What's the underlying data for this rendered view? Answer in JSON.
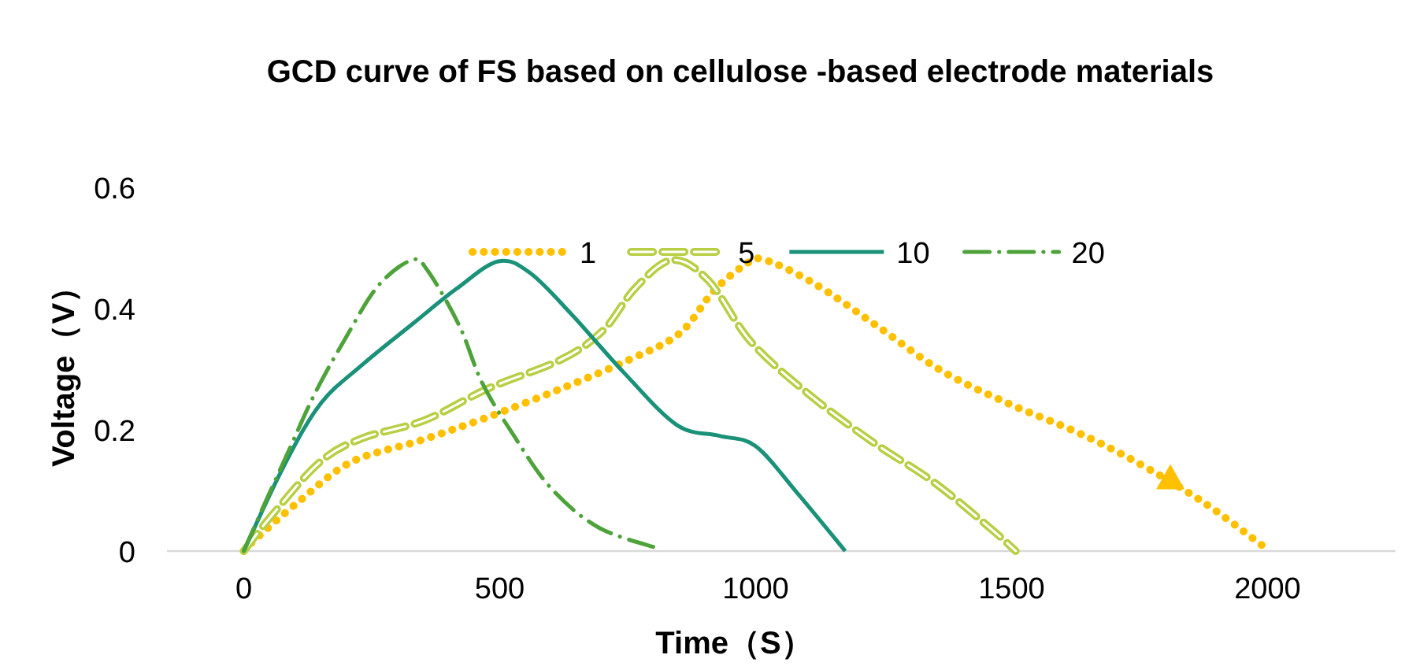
{
  "chart_data": {
    "type": "line",
    "title": "GCD curve of FS based on cellulose -based electrode materials",
    "xlabel": "Time（S）",
    "ylabel": "Voltage（V）",
    "xlim": [
      -150,
      2250
    ],
    "xticks": [
      0,
      500,
      1000,
      1500,
      2000
    ],
    "ylim": [
      0,
      0.6
    ],
    "yticks": [
      0,
      {
        "value": 0.2,
        "label": "0.2"
      },
      {
        "value": 0.4,
        "label": "0.4"
      },
      {
        "value": 0.6,
        "label": "0.6"
      }
    ],
    "grid": false,
    "legend": "top",
    "marker": "none",
    "series": [
      {
        "name": "1",
        "color": "#ffc000",
        "line_style": "dotted",
        "x": [
          0,
          26,
          108,
          210,
          343,
          477,
          620,
          754,
          851,
          918,
          979,
          1015,
          1113,
          1236,
          1360,
          1492,
          1625,
          1739,
          1872,
          1990
        ],
        "values": [
          0,
          0.022,
          0.082,
          0.147,
          0.182,
          0.221,
          0.268,
          0.316,
          0.359,
          0.429,
          0.472,
          0.481,
          0.442,
          0.372,
          0.299,
          0.244,
          0.197,
          0.149,
          0.082,
          0.009
        ]
      },
      {
        "name": "5",
        "color": "#b8cf45",
        "line_style": "dashed",
        "x": [
          0,
          57,
          149,
          231,
          354,
          477,
          620,
          702,
          764,
          836,
          908,
          990,
          1102,
          1225,
          1349,
          1462,
          1508
        ],
        "values": [
          0,
          0.061,
          0.147,
          0.186,
          0.216,
          0.268,
          0.316,
          0.364,
          0.433,
          0.48,
          0.446,
          0.346,
          0.26,
          0.182,
          0.113,
          0.035,
          0
        ]
      },
      {
        "name": "10",
        "color": "#1a9179",
        "line_style": "solid",
        "x": [
          0,
          77,
          149,
          231,
          333,
          416,
          497,
          559,
          641,
          743,
          846,
          929,
          1000,
          1082,
          1175
        ],
        "values": [
          0,
          0.138,
          0.242,
          0.307,
          0.377,
          0.433,
          0.478,
          0.459,
          0.39,
          0.294,
          0.208,
          0.19,
          0.173,
          0.095,
          0
        ]
      },
      {
        "name": "20",
        "color": "#4ea23a",
        "line_style": "dashdot",
        "x": [
          0,
          36,
          87,
          139,
          198,
          262,
          328,
          359,
          421,
          466,
          528,
          600,
          693,
          811
        ],
        "values": [
          0,
          0.069,
          0.164,
          0.26,
          0.35,
          0.437,
          0.48,
          0.463,
          0.372,
          0.277,
          0.19,
          0.104,
          0.039,
          0.004
        ]
      },
      {
        "type": "scatter",
        "marker": "triangle",
        "color": "#ffc000",
        "x": [
          1810
        ],
        "values": [
          0.12
        ]
      }
    ]
  }
}
